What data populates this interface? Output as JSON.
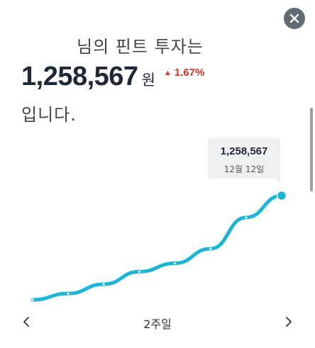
{
  "header": {
    "line1": "님의 핀트 투자는",
    "amount": "1,258,567",
    "unit": "원",
    "change": "1.67%",
    "line3": "입니다."
  },
  "tooltip": {
    "value": "1,258,567",
    "date": "12월 12일"
  },
  "period": {
    "label": "2주일"
  },
  "icons": {
    "close": "close-icon",
    "prev": "chevron-left-icon",
    "next": "chevron-right-icon",
    "change": "triangle-up-icon"
  },
  "colors": {
    "line": "#1db5d6",
    "change": "#e2301f",
    "close_bg": "#5f6a73"
  },
  "chart_data": {
    "type": "line",
    "x": [
      1,
      2,
      3,
      4,
      5,
      6,
      7,
      8
    ],
    "values": [
      0.0,
      0.06,
      0.15,
      0.27,
      0.35,
      0.49,
      0.79,
      1.0
    ],
    "highlight": {
      "value": "1,258,567",
      "date": "12월 12일"
    }
  }
}
